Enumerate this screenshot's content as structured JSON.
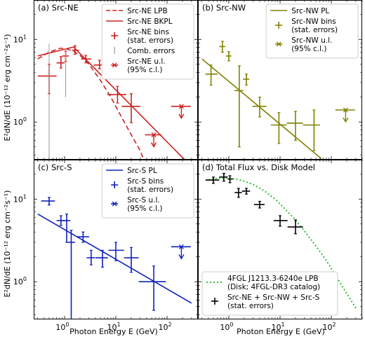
{
  "figure": {
    "xlabel": "Photon Energy E (GeV)",
    "ylabel": "E²dN/dE (10⁻¹² erg cm⁻²s⁻¹)",
    "x_range_gev": [
      0.25,
      400
    ],
    "y_range": [
      0.35,
      30
    ]
  },
  "chart_data": [
    {
      "type": "scatter",
      "panel": "a",
      "title": "(a) Src-NE",
      "xscale": "log",
      "yscale": "log",
      "color": "#cc2222",
      "legend_position": "top-right",
      "legend": [
        "Src-NE LPB",
        "Src-NE BKPL",
        "Src-NE bins (stat. errors)",
        "Comb. errors",
        "Src-NE u.l. (95% c.l.)"
      ],
      "series": [
        {
          "name": "Src-NE LPB",
          "style": "dashed",
          "x": [
            0.3,
            0.5,
            0.8,
            1.0,
            1.5,
            2.0,
            3.0,
            5.0,
            8.0,
            12.0,
            20.0,
            30.0,
            50.0
          ],
          "y": [
            5.8,
            7.0,
            7.8,
            7.8,
            7.2,
            6.4,
            5.0,
            3.2,
            2.0,
            1.25,
            0.7,
            0.45,
            0.2
          ]
        },
        {
          "name": "Src-NE BKPL",
          "style": "solid",
          "x": [
            0.3,
            1.5,
            400
          ],
          "y": [
            6.3,
            8.1,
            0.24
          ]
        },
        {
          "name": "Src-NE bins (stat. errors)",
          "points": [
            {
              "x": 0.5,
              "xlo": 0.3,
              "xhi": 0.7,
              "y": 3.6,
              "ylo": 2.2,
              "yhi": 5.0
            },
            {
              "x": 0.85,
              "xlo": 0.7,
              "xhi": 1.0,
              "y": 5.2,
              "ylo": 4.5,
              "yhi": 6.2
            },
            {
              "x": 1.05,
              "xlo": 0.9,
              "xhi": 1.2,
              "y": 6.3,
              "ylo": 5.4,
              "yhi": 7.2
            },
            {
              "x": 1.6,
              "xlo": 1.4,
              "xhi": 1.9,
              "y": 7.4,
              "ylo": 6.6,
              "yhi": 8.4
            },
            {
              "x": 2.6,
              "xlo": 2.1,
              "xhi": 3.3,
              "y": 5.8,
              "ylo": 5.2,
              "yhi": 6.4
            },
            {
              "x": 4.8,
              "xlo": 3.7,
              "xhi": 6.8,
              "y": 4.9,
              "ylo": 4.4,
              "yhi": 5.6
            },
            {
              "x": 10.8,
              "xlo": 6.8,
              "xhi": 16,
              "y": 2.15,
              "ylo": 1.7,
              "yhi": 2.7
            },
            {
              "x": 20,
              "xlo": 13,
              "xhi": 30,
              "y": 1.55,
              "ylo": 0.98,
              "yhi": 2.2
            }
          ]
        },
        {
          "name": "Comb. errors",
          "points": [
            {
              "x": 0.5,
              "ylo": 0.36,
              "yhi": 8.9
            },
            {
              "x": 1.05,
              "ylo": 2.0,
              "yhi": 7.8
            }
          ]
        },
        {
          "name": "Src-NE u.l. (95% c.l.)",
          "points": [
            {
              "x": 55,
              "xlo": 37,
              "xhi": 78,
              "y": 0.7
            },
            {
              "x": 190,
              "xlo": 120,
              "xhi": 290,
              "y": 1.55
            }
          ]
        }
      ]
    },
    {
      "type": "scatter",
      "panel": "b",
      "title": "(b) Src-NW",
      "xscale": "log",
      "yscale": "log",
      "color": "#808000",
      "legend_position": "top-right",
      "legend": [
        "Src-NW PL",
        "Src-NW bins (stat. errors)",
        "Src-NW u.l. (95% c.l.)"
      ],
      "series": [
        {
          "name": "Src-NW PL",
          "style": "solid",
          "x": [
            0.3,
            64
          ],
          "y": [
            5.8,
            0.36
          ]
        },
        {
          "name": "Src-NW bins (stat. errors)",
          "points": [
            {
              "x": 0.45,
              "xlo": 0.35,
              "xhi": 0.6,
              "y": 3.8,
              "ylo": 2.8,
              "yhi": 4.9
            },
            {
              "x": 0.75,
              "xlo": 0.65,
              "xhi": 0.85,
              "y": 8.2,
              "ylo": 7.0,
              "yhi": 9.5
            },
            {
              "x": 1.0,
              "xlo": 0.88,
              "xhi": 1.12,
              "y": 6.3,
              "ylo": 5.5,
              "yhi": 7.1
            },
            {
              "x": 1.6,
              "xlo": 1.3,
              "xhi": 1.9,
              "y": 2.4,
              "ylo": 0.5,
              "yhi": 4.8
            },
            {
              "x": 2.2,
              "xlo": 1.9,
              "xhi": 2.5,
              "y": 3.3,
              "ylo": 2.8,
              "yhi": 3.8
            },
            {
              "x": 4.0,
              "xlo": 2.9,
              "xhi": 5.4,
              "y": 1.55,
              "ylo": 1.15,
              "yhi": 2.0
            },
            {
              "x": 9.5,
              "xlo": 6.6,
              "xhi": 13.5,
              "y": 0.92,
              "ylo": 0.55,
              "yhi": 1.3
            },
            {
              "x": 20,
              "xlo": 13.5,
              "xhi": 28,
              "y": 0.97,
              "ylo": 0.6,
              "yhi": 1.35
            },
            {
              "x": 46,
              "xlo": 28,
              "xhi": 60,
              "y": 0.92,
              "ylo": 0.45,
              "yhi": 1.4
            }
          ]
        },
        {
          "name": "Src-NW u.l. (95% c.l.)",
          "points": [
            {
              "x": 190,
              "xlo": 120,
              "xhi": 290,
              "y": 1.4
            }
          ]
        }
      ]
    },
    {
      "type": "scatter",
      "panel": "c",
      "title": "(c) Src-S",
      "xscale": "log",
      "yscale": "log",
      "color": "#1122bb",
      "legend_position": "top-right",
      "legend": [
        "Src-S PL",
        "Src-S bins (stat. errors)",
        "Src-S u.l. (95% c.l.)"
      ],
      "series": [
        {
          "name": "Src-S PL",
          "style": "solid",
          "x": [
            0.3,
            300
          ],
          "y": [
            6.6,
            0.55
          ]
        },
        {
          "name": "Src-S bins (stat. errors)",
          "points": [
            {
              "x": 0.5,
              "xlo": 0.35,
              "xhi": 0.65,
              "y": 9.5,
              "ylo": 8.5,
              "yhi": 10.5
            },
            {
              "x": 0.85,
              "xlo": 0.7,
              "xhi": 1.0,
              "y": 5.5,
              "ylo": 4.8,
              "yhi": 6.3
            },
            {
              "x": 1.1,
              "xlo": 0.9,
              "xhi": 1.3,
              "y": 5.5,
              "ylo": 3.0,
              "yhi": 6.6
            },
            {
              "x": 1.35,
              "xlo": 1.15,
              "xhi": 1.6,
              "y": 3.0,
              "ylo": 0.35,
              "yhi": 4.2
            },
            {
              "x": 2.3,
              "xlo": 1.8,
              "xhi": 3.0,
              "y": 3.5,
              "ylo": 3.0,
              "yhi": 4.0
            },
            {
              "x": 3.3,
              "xlo": 2.7,
              "xhi": 3.9,
              "y": 1.95,
              "ylo": 1.6,
              "yhi": 2.4
            },
            {
              "x": 5.5,
              "xlo": 4.0,
              "xhi": 7.0,
              "y": 1.95,
              "ylo": 1.5,
              "yhi": 2.4
            },
            {
              "x": 10,
              "xlo": 7.2,
              "xhi": 14.5,
              "y": 2.4,
              "ylo": 1.8,
              "yhi": 3.0
            },
            {
              "x": 20,
              "xlo": 14.5,
              "xhi": 28,
              "y": 1.95,
              "ylo": 1.3,
              "yhi": 2.6
            },
            {
              "x": 55,
              "xlo": 28,
              "xhi": 95,
              "y": 1.0,
              "ylo": 0.45,
              "yhi": 1.55
            }
          ]
        },
        {
          "name": "Src-S u.l. (95% c.l.)",
          "points": [
            {
              "x": 190,
              "xlo": 120,
              "xhi": 290,
              "y": 2.65
            }
          ]
        }
      ]
    },
    {
      "type": "scatter",
      "panel": "d",
      "title": "(d) Total Flux vs. Disk Model",
      "xscale": "log",
      "yscale": "log",
      "legend_position": "bottom-left",
      "legend": [
        "4FGL J1213.3-6240e LPB (Disk; 4FGL-DR3 catalog)",
        "Src-NE + Src-NW + Src-S (stat. errors)"
      ],
      "series": [
        {
          "name": "4FGL J1213.3-6240e LPB (Disk; 4FGL-DR3 catalog)",
          "style": "dotted",
          "color": "#33bb33",
          "x": [
            0.4,
            0.6,
            0.9,
            1.3,
            2.0,
            3.0,
            5.0,
            8.0,
            12.0,
            20.0,
            30.0,
            50.0,
            80.0,
            130.0,
            200.0,
            300.0
          ],
          "y": [
            17.2,
            17.8,
            18.0,
            17.6,
            16.5,
            15.0,
            12.5,
            10.0,
            7.8,
            5.6,
            4.1,
            2.7,
            1.8,
            1.1,
            0.72,
            0.48
          ]
        },
        {
          "name": "Src-NE + Src-NW + Src-S (stat. errors)",
          "color": "#000000",
          "points": [
            {
              "x": 0.5,
              "xlo": 0.35,
              "xhi": 0.65,
              "y": 17.0,
              "ylo": 15.5,
              "yhi": 18.5
            },
            {
              "x": 0.8,
              "xlo": 0.65,
              "xhi": 0.95,
              "y": 18.5,
              "ylo": 16.5,
              "yhi": 20.5
            },
            {
              "x": 1.05,
              "xlo": 0.95,
              "xhi": 1.2,
              "y": 17.5,
              "ylo": 15.8,
              "yhi": 19.2
            },
            {
              "x": 1.55,
              "xlo": 1.3,
              "xhi": 1.8,
              "y": 12.0,
              "ylo": 10.5,
              "yhi": 13.5
            },
            {
              "x": 2.2,
              "xlo": 1.8,
              "xhi": 2.6,
              "y": 12.5,
              "ylo": 11.5,
              "yhi": 13.5
            },
            {
              "x": 4.0,
              "xlo": 3.1,
              "xhi": 5.0,
              "y": 8.6,
              "ylo": 7.8,
              "yhi": 9.4
            },
            {
              "x": 10,
              "xlo": 7.5,
              "xhi": 14,
              "y": 5.5,
              "ylo": 4.7,
              "yhi": 6.3
            },
            {
              "x": 20,
              "xlo": 14,
              "xhi": 28,
              "y": 4.6,
              "ylo": 3.8,
              "yhi": 5.6
            }
          ]
        }
      ]
    }
  ]
}
